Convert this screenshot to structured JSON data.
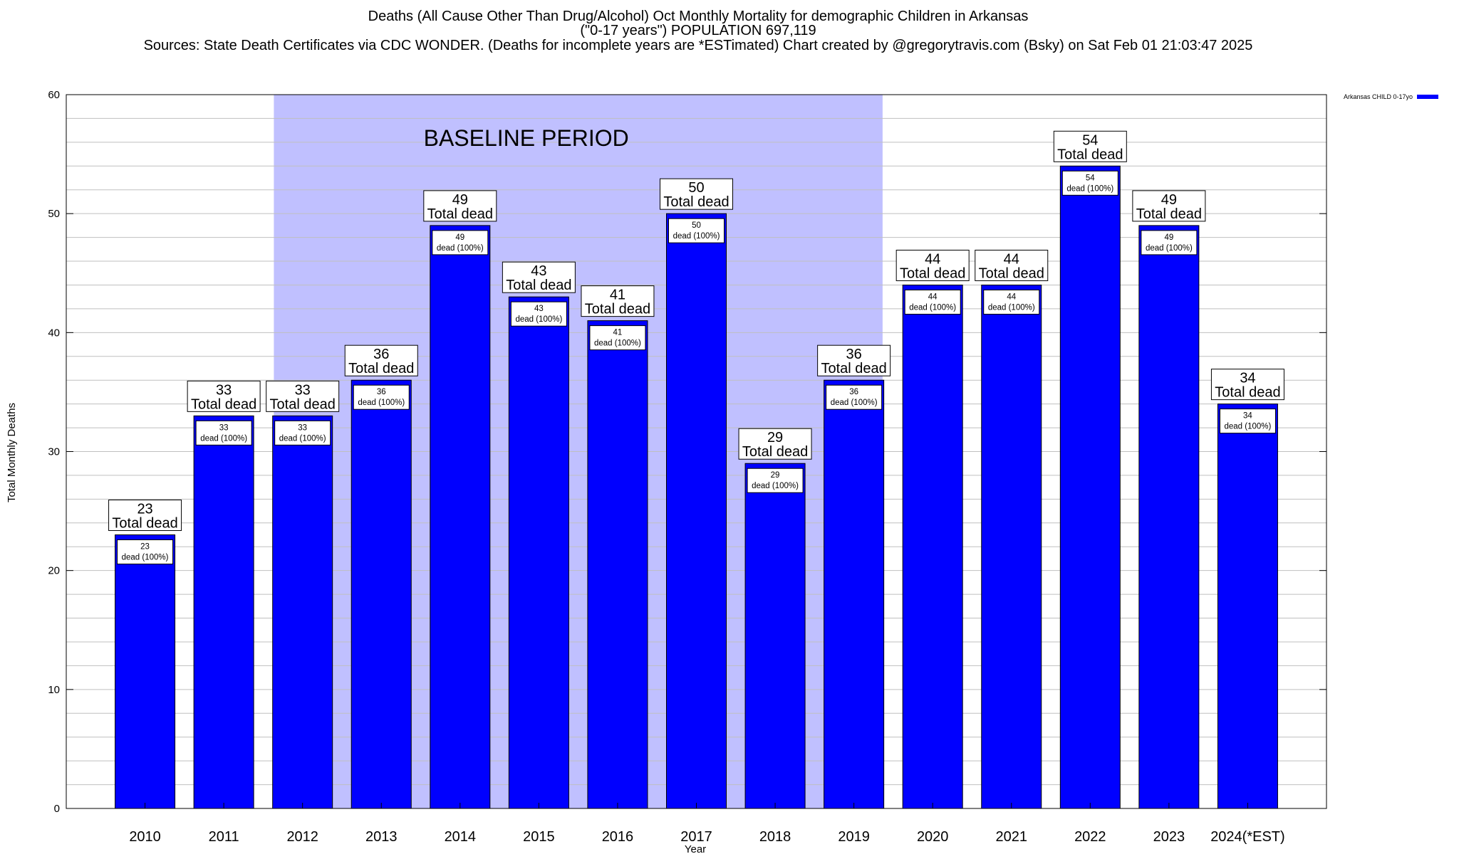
{
  "titles": {
    "line1": "Deaths (All Cause Other Than Drug/Alcohol) Oct Monthly Mortality for demographic Children in Arkansas",
    "line2": "(\"0-17 years\") POPULATION 697,119",
    "line3": "Sources: State Death Certificates via CDC WONDER. (Deaths for incomplete years are *ESTimated)                 Chart created by @gregorytravis.com (Bsky) on Sat Feb 01 21:03:47 2025"
  },
  "legend": {
    "label": "Arkansas CHILD 0-17yo"
  },
  "colors": {
    "bar": "#0000ff",
    "baseline": "#c0c0ff",
    "bar_border": "#000000",
    "grid": "#bfbfbf"
  },
  "chart_data": {
    "type": "bar",
    "xlabel": "Year",
    "ylabel": "Total Monthly Deaths",
    "ylim": [
      0,
      60
    ],
    "yticks": [
      0,
      10,
      20,
      30,
      40,
      50,
      60
    ],
    "ytick_labels": [
      "0",
      "10",
      "20",
      "30",
      "40",
      "50",
      "60"
    ],
    "minor_gridline_step": 2,
    "grid": true,
    "legend_position": "top-right",
    "categories": [
      "2010",
      "2011",
      "2012",
      "2013",
      "2014",
      "2015",
      "2016",
      "2017",
      "2018",
      "2019",
      "2020",
      "2021",
      "2022",
      "2023",
      "2024(*EST)"
    ],
    "series": [
      {
        "name": "Arkansas CHILD 0-17yo",
        "values": [
          23,
          33,
          33,
          36,
          49,
          43,
          41,
          50,
          29,
          36,
          44,
          44,
          54,
          49,
          34
        ]
      }
    ],
    "top_label_suffix": "Total dead",
    "inner_label_suffix": "dead (100%)",
    "baseline_period": {
      "label": "BASELINE PERIOD",
      "start_category": "2012",
      "end_category": "2019"
    }
  }
}
